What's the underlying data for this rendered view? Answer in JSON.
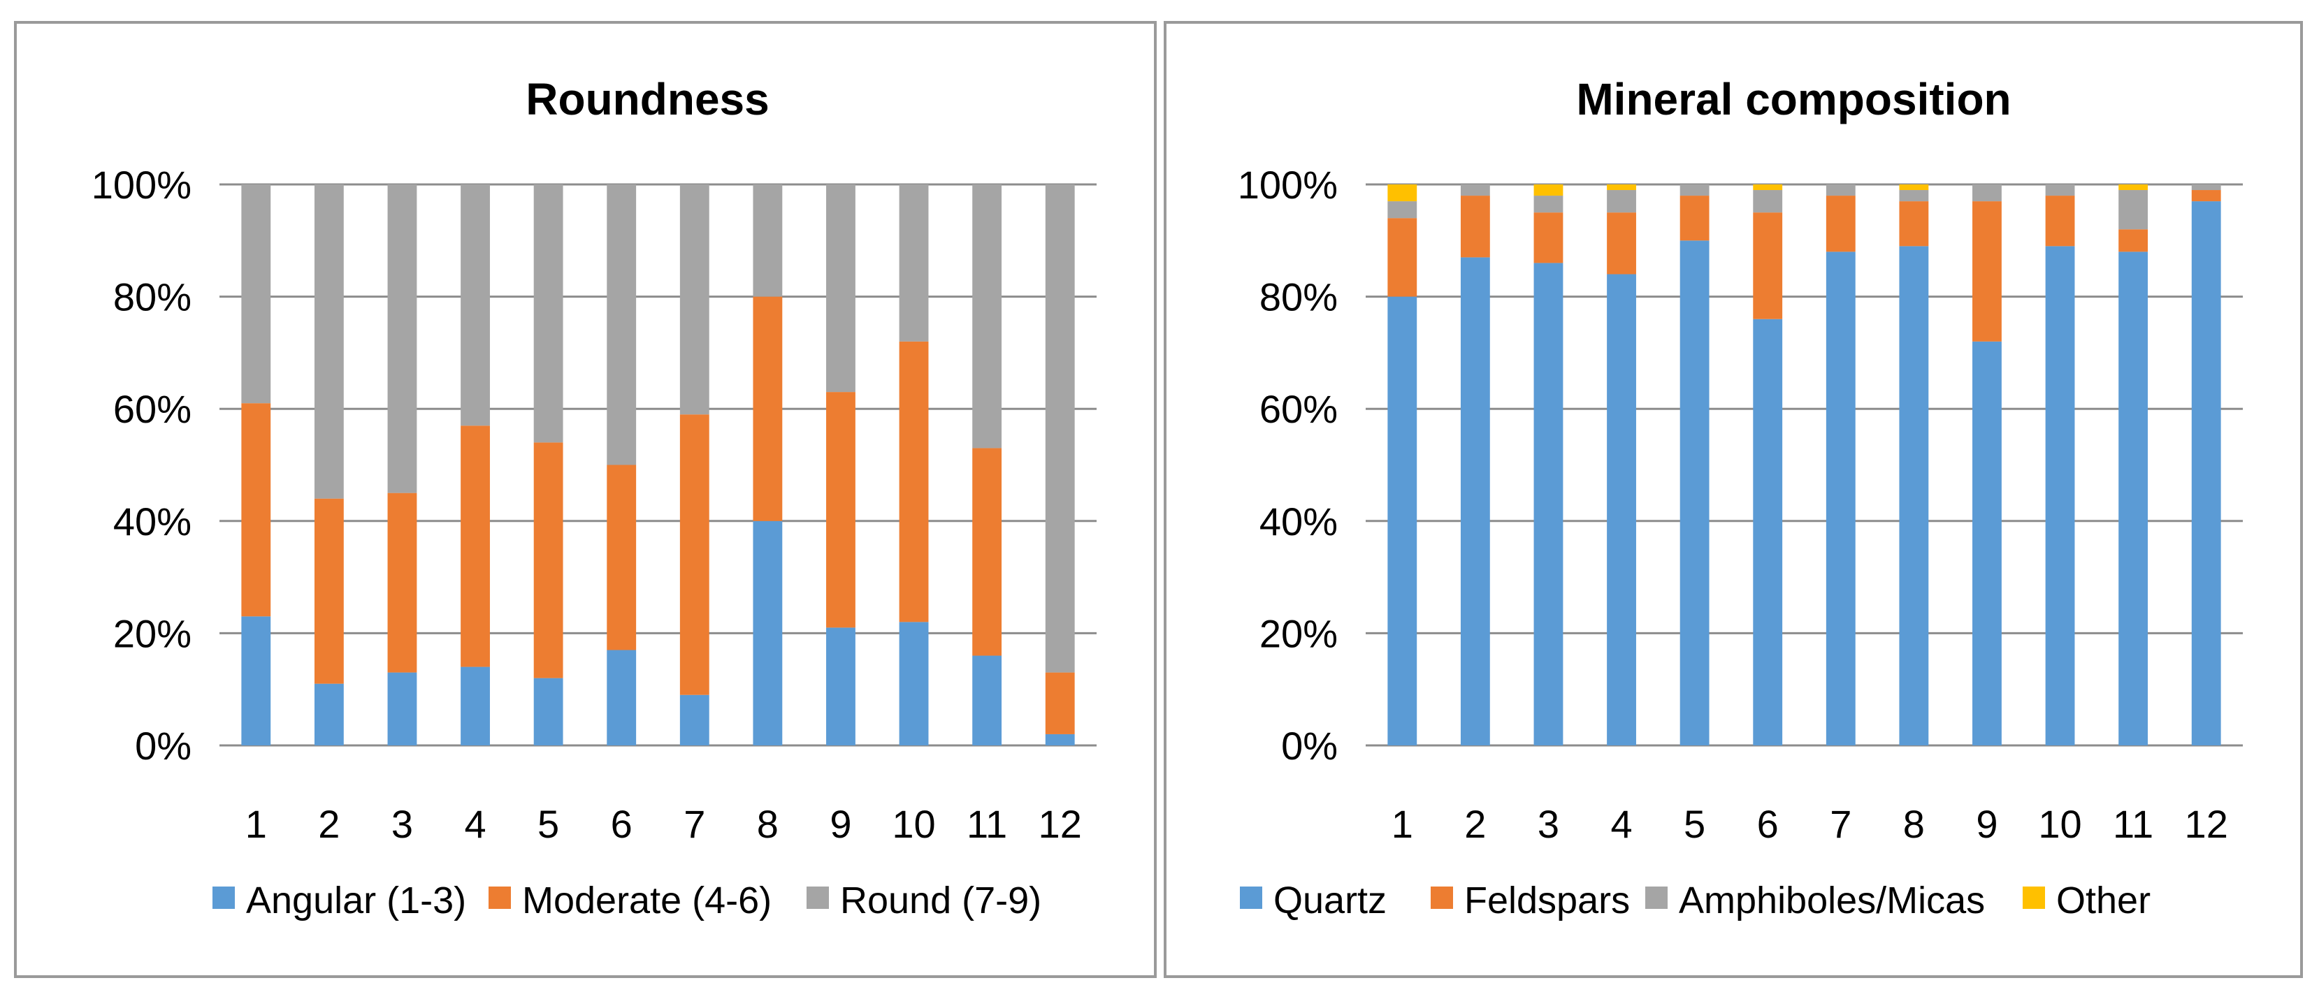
{
  "chart_data": [
    {
      "type": "bar",
      "stacked": "percent",
      "title": "Roundness",
      "categories": [
        "1",
        "2",
        "3",
        "4",
        "5",
        "6",
        "7",
        "8",
        "9",
        "10",
        "11",
        "12"
      ],
      "ylim": [
        0,
        100
      ],
      "yticks": [
        "0%",
        "20%",
        "40%",
        "60%",
        "80%",
        "100%"
      ],
      "grid": true,
      "legend_position": "bottom",
      "series": [
        {
          "name": "Angular (1-3)",
          "color": "#5b9bd5",
          "values": [
            23,
            11,
            13,
            14,
            12,
            17,
            9,
            40,
            21,
            22,
            16,
            2
          ]
        },
        {
          "name": "Moderate (4-6)",
          "color": "#ed7d31",
          "values": [
            38,
            33,
            32,
            43,
            42,
            33,
            50,
            40,
            42,
            50,
            37,
            11
          ]
        },
        {
          "name": "Round (7-9)",
          "color": "#a5a5a5",
          "values": [
            39,
            56,
            55,
            43,
            46,
            50,
            41,
            20,
            37,
            28,
            47,
            87
          ]
        }
      ]
    },
    {
      "type": "bar",
      "stacked": "percent",
      "title": "Mineral composition",
      "categories": [
        "1",
        "2",
        "3",
        "4",
        "5",
        "6",
        "7",
        "8",
        "9",
        "10",
        "11",
        "12"
      ],
      "ylim": [
        0,
        100
      ],
      "yticks": [
        "0%",
        "20%",
        "40%",
        "60%",
        "80%",
        "100%"
      ],
      "grid": true,
      "legend_position": "bottom",
      "series": [
        {
          "name": "Quartz",
          "color": "#5b9bd5",
          "values": [
            80,
            87,
            86,
            84,
            90,
            76,
            88,
            89,
            72,
            89,
            88,
            97
          ]
        },
        {
          "name": "Feldspars",
          "color": "#ed7d31",
          "values": [
            14,
            11,
            9,
            11,
            8,
            19,
            10,
            8,
            25,
            9,
            4,
            2
          ]
        },
        {
          "name": "Amphiboles/Micas",
          "color": "#a5a5a5",
          "values": [
            3,
            2,
            3,
            4,
            2,
            4,
            2,
            2,
            3,
            2,
            7,
            1
          ]
        },
        {
          "name": "Other",
          "color": "#ffc000",
          "values": [
            3,
            0,
            2,
            1,
            0,
            1,
            0,
            1,
            0,
            0,
            1,
            0
          ]
        }
      ]
    }
  ]
}
